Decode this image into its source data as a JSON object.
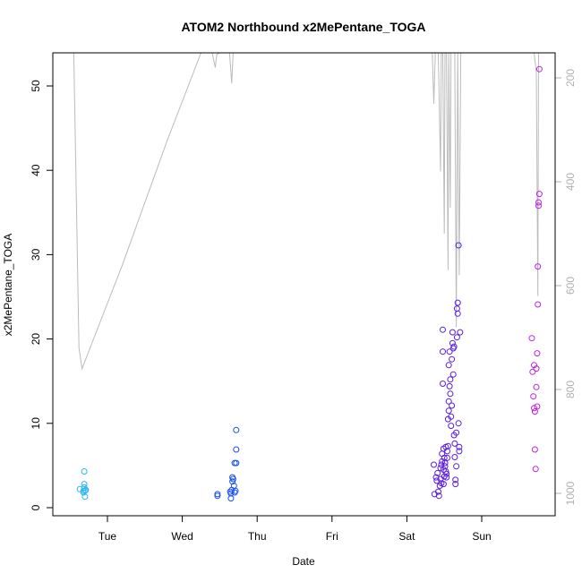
{
  "chart_data": {
    "type": "scatter",
    "title": "ATOM2 Northbound x2MePentane_TOGA",
    "xlabel": "Date",
    "ylabel": "x2MePentane_TOGA",
    "x_unit": "days since Mon 00:00",
    "xlim": [
      0.4,
      6.0
    ],
    "ylim": [
      0,
      54
    ],
    "y_ticks": [
      0,
      10,
      20,
      30,
      40,
      50
    ],
    "x_ticks": [
      {
        "x": 1,
        "label": "Tue"
      },
      {
        "x": 2,
        "label": "Wed"
      },
      {
        "x": 3,
        "label": "Thu"
      },
      {
        "x": 4,
        "label": "Fri"
      },
      {
        "x": 5,
        "label": "Sat"
      },
      {
        "x": 6,
        "label": "Sun"
      }
    ],
    "right_axis": {
      "ylim_top_to_bottom": [
        130,
        1020
      ],
      "ticks": [
        200,
        400,
        600,
        800,
        1000
      ],
      "color": "#b0b0b0"
    },
    "series": [
      {
        "color": "#2ab6f5",
        "points": [
          [
            0.63,
            2.2
          ],
          [
            0.68,
            2.0
          ],
          [
            0.68,
            1.8
          ],
          [
            0.69,
            2.4
          ],
          [
            0.69,
            2.8
          ],
          [
            0.69,
            4.3
          ],
          [
            0.7,
            1.3
          ],
          [
            0.7,
            2.0
          ],
          [
            0.71,
            2.1
          ],
          [
            0.71,
            2.1
          ]
        ]
      },
      {
        "color": "#1a4fe6",
        "points": [
          [
            2.47,
            1.6
          ],
          [
            2.47,
            1.4
          ],
          [
            2.64,
            1.9
          ],
          [
            2.65,
            1.7
          ],
          [
            2.65,
            1.1
          ],
          [
            2.66,
            2.1
          ],
          [
            2.67,
            3.1
          ],
          [
            2.67,
            3.6
          ],
          [
            2.68,
            3.4
          ],
          [
            2.69,
            2.6
          ],
          [
            2.7,
            1.8
          ],
          [
            2.7,
            5.3
          ],
          [
            2.71,
            2.0
          ],
          [
            2.72,
            5.3
          ],
          [
            2.72,
            6.9
          ],
          [
            2.72,
            9.2
          ]
        ]
      },
      {
        "color": "#5a1ee0",
        "points": [
          [
            5.36,
            5.1
          ],
          [
            5.37,
            1.6
          ],
          [
            5.39,
            3.6
          ],
          [
            5.4,
            3.2
          ],
          [
            5.41,
            4.1
          ],
          [
            5.42,
            1.9
          ],
          [
            5.43,
            1.4
          ],
          [
            5.44,
            2.6
          ],
          [
            5.45,
            4.7
          ],
          [
            5.45,
            3.4
          ],
          [
            5.46,
            5.1
          ],
          [
            5.46,
            2.9
          ],
          [
            5.47,
            6.4
          ],
          [
            5.47,
            5.5
          ],
          [
            5.48,
            18.5
          ],
          [
            5.48,
            14.7
          ],
          [
            5.48,
            21.1
          ],
          [
            5.49,
            7.0
          ],
          [
            5.49,
            4.5
          ],
          [
            5.49,
            2.8
          ],
          [
            5.5,
            3.7
          ],
          [
            5.5,
            5.9
          ],
          [
            5.51,
            4.9
          ],
          [
            5.51,
            5.3
          ],
          [
            5.52,
            7.2
          ],
          [
            5.52,
            4.3
          ],
          [
            5.53,
            4.0
          ],
          [
            5.53,
            3.6
          ],
          [
            5.54,
            5.9
          ],
          [
            5.54,
            6.7
          ],
          [
            5.55,
            7.3
          ],
          [
            5.55,
            10.5
          ],
          [
            5.56,
            11.5
          ],
          [
            5.56,
            12.6
          ],
          [
            5.56,
            16.9
          ],
          [
            5.57,
            14.4
          ],
          [
            5.57,
            18.5
          ],
          [
            5.58,
            15.2
          ],
          [
            5.58,
            13.5
          ],
          [
            5.59,
            9.7
          ],
          [
            5.59,
            10.8
          ],
          [
            5.6,
            12.1
          ],
          [
            5.6,
            17.6
          ],
          [
            5.61,
            19.5
          ],
          [
            5.61,
            20.8
          ],
          [
            5.62,
            18.9
          ],
          [
            5.62,
            15.8
          ],
          [
            5.63,
            19.1
          ],
          [
            5.63,
            8.6
          ],
          [
            5.64,
            7.6
          ],
          [
            5.64,
            6.0
          ],
          [
            5.65,
            3.3
          ],
          [
            5.65,
            2.8
          ],
          [
            5.66,
            4.9
          ],
          [
            5.66,
            8.9
          ],
          [
            5.67,
            20.2
          ],
          [
            5.67,
            23.6
          ],
          [
            5.68,
            24.3
          ],
          [
            5.68,
            23.0
          ],
          [
            5.69,
            31.1
          ],
          [
            5.69,
            10.0
          ],
          [
            5.7,
            7.2
          ],
          [
            5.7,
            6.7
          ],
          [
            5.71,
            20.8
          ]
        ]
      },
      {
        "color": "#c021e6",
        "points": [
          [
            6.67,
            20.1
          ],
          [
            6.68,
            16.1
          ],
          [
            6.69,
            13.2
          ],
          [
            6.7,
            16.9
          ],
          [
            6.7,
            11.8
          ],
          [
            6.71,
            11.4
          ],
          [
            6.71,
            6.9
          ],
          [
            6.72,
            4.6
          ],
          [
            6.73,
            14.3
          ],
          [
            6.73,
            16.5
          ],
          [
            6.74,
            12.0
          ],
          [
            6.74,
            18.3
          ],
          [
            6.75,
            24.1
          ],
          [
            6.75,
            28.6
          ],
          [
            6.76,
            35.8
          ],
          [
            6.76,
            36.2
          ],
          [
            6.77,
            37.2
          ],
          [
            6.77,
            52.0
          ]
        ]
      }
    ],
    "altitude_line": {
      "color": "#bbbbbb",
      "points": [
        [
          0.5,
          130
        ],
        [
          0.55,
          130
        ],
        [
          0.62,
          720
        ],
        [
          0.66,
          760
        ],
        [
          1.2,
          560
        ],
        [
          1.8,
          320
        ],
        [
          2.25,
          140
        ],
        [
          2.4,
          130
        ],
        [
          2.44,
          180
        ],
        [
          2.46,
          155
        ],
        [
          2.5,
          130
        ],
        [
          2.6,
          130
        ],
        [
          2.63,
          130
        ],
        [
          2.66,
          210
        ],
        [
          2.68,
          130
        ],
        [
          2.75,
          130
        ],
        [
          4.8,
          130
        ],
        [
          5.2,
          130
        ],
        [
          5.34,
          130
        ],
        [
          5.36,
          250
        ],
        [
          5.38,
          130
        ],
        [
          5.42,
          130
        ],
        [
          5.45,
          380
        ],
        [
          5.46,
          140
        ],
        [
          5.48,
          130
        ],
        [
          5.5,
          500
        ],
        [
          5.51,
          135
        ],
        [
          5.53,
          130
        ],
        [
          5.55,
          570
        ],
        [
          5.56,
          150
        ],
        [
          5.58,
          450
        ],
        [
          5.59,
          130
        ],
        [
          5.62,
          130
        ],
        [
          5.64,
          130
        ],
        [
          5.66,
          680
        ],
        [
          5.68,
          130
        ],
        [
          5.7,
          580
        ],
        [
          5.72,
          130
        ],
        [
          5.85,
          130
        ],
        [
          6.7,
          130
        ],
        [
          6.73,
          190
        ],
        [
          6.75,
          620
        ],
        [
          6.76,
          140
        ],
        [
          6.78,
          130
        ],
        [
          6.85,
          130
        ]
      ]
    }
  }
}
